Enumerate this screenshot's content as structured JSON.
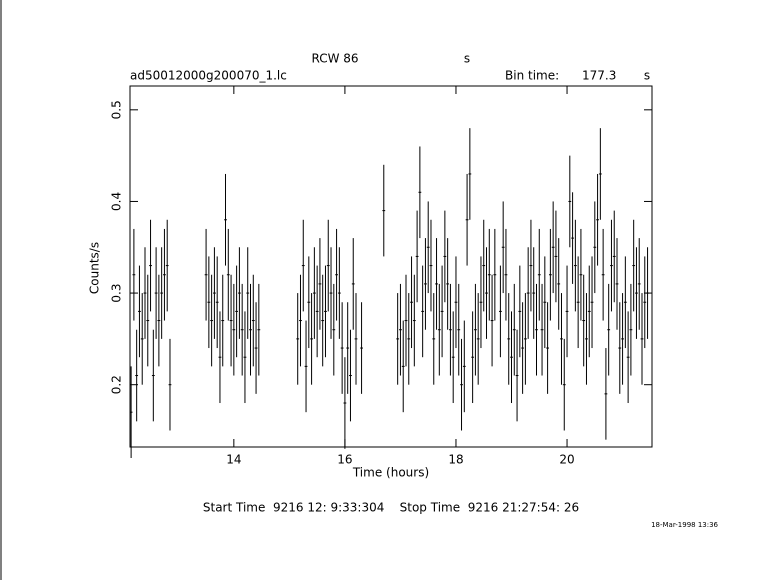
{
  "chart_data": {
    "type": "errorbar",
    "title": "RCW 86",
    "title_unit": "s",
    "file": "ad50012000g200070_1.lc",
    "bin_label": "Bin time:",
    "bin_value": "177.3",
    "bin_unit": "s",
    "xlabel": "Time (hours)",
    "ylabel": "Counts/s",
    "footer": "Start Time  9216 12: 9:33:304    Stop Time  9216 21:27:54: 26",
    "date_stamp": "18-Mar-1998 13:36",
    "xlim": [
      12.13,
      21.53
    ],
    "ylim": [
      0.132,
      0.526
    ],
    "xticks": [
      14,
      16,
      18,
      20
    ],
    "yticks": [
      0.2,
      0.3,
      0.4,
      0.5
    ],
    "yerr": 0.05,
    "color": "#000000",
    "x": [
      12.15,
      12.2,
      12.25,
      12.3,
      12.35,
      12.4,
      12.45,
      12.5,
      12.55,
      12.6,
      12.65,
      12.7,
      12.75,
      12.8,
      12.85,
      13.5,
      13.55,
      13.6,
      13.65,
      13.7,
      13.75,
      13.8,
      13.85,
      13.9,
      13.95,
      14.0,
      14.05,
      14.1,
      14.15,
      14.2,
      14.25,
      14.3,
      14.35,
      14.4,
      14.45,
      15.15,
      15.2,
      15.25,
      15.3,
      15.35,
      15.4,
      15.45,
      15.5,
      15.55,
      15.6,
      15.65,
      15.7,
      15.75,
      15.8,
      15.85,
      15.9,
      15.95,
      16.0,
      16.05,
      16.1,
      16.15,
      16.2,
      16.3,
      16.7,
      16.95,
      17.0,
      17.05,
      17.1,
      17.15,
      17.2,
      17.25,
      17.3,
      17.35,
      17.4,
      17.45,
      17.5,
      17.55,
      17.6,
      17.65,
      17.7,
      17.75,
      17.8,
      17.85,
      17.9,
      17.95,
      18.0,
      18.05,
      18.1,
      18.15,
      18.2,
      18.25,
      18.3,
      18.35,
      18.4,
      18.45,
      18.5,
      18.55,
      18.6,
      18.65,
      18.7,
      18.8,
      18.85,
      18.9,
      18.95,
      19.0,
      19.05,
      19.1,
      19.15,
      19.2,
      19.25,
      19.3,
      19.35,
      19.4,
      19.45,
      19.5,
      19.55,
      19.6,
      19.65,
      19.7,
      19.75,
      19.8,
      19.85,
      19.9,
      19.95,
      20.0,
      20.05,
      20.1,
      20.15,
      20.2,
      20.25,
      20.3,
      20.35,
      20.4,
      20.45,
      20.5,
      20.55,
      20.6,
      20.65,
      20.7,
      20.75,
      20.8,
      20.85,
      20.9,
      20.95,
      21.0,
      21.05,
      21.1,
      21.15,
      21.2,
      21.25,
      21.3,
      21.35,
      21.4,
      21.45
    ],
    "y": [
      0.17,
      0.32,
      0.21,
      0.28,
      0.25,
      0.3,
      0.27,
      0.33,
      0.21,
      0.3,
      0.27,
      0.3,
      0.32,
      0.33,
      0.2,
      0.32,
      0.29,
      0.27,
      0.3,
      0.29,
      0.23,
      0.27,
      0.38,
      0.32,
      0.27,
      0.26,
      0.28,
      0.3,
      0.26,
      0.23,
      0.3,
      0.26,
      0.27,
      0.24,
      0.26,
      0.25,
      0.27,
      0.33,
      0.22,
      0.29,
      0.25,
      0.3,
      0.28,
      0.31,
      0.27,
      0.28,
      0.33,
      0.3,
      0.26,
      0.32,
      0.3,
      0.24,
      0.18,
      0.24,
      0.21,
      0.31,
      0.25,
      0.24,
      0.39,
      0.25,
      0.26,
      0.22,
      0.27,
      0.25,
      0.29,
      0.27,
      0.34,
      0.41,
      0.28,
      0.31,
      0.35,
      0.33,
      0.25,
      0.31,
      0.26,
      0.28,
      0.34,
      0.31,
      0.26,
      0.23,
      0.29,
      0.26,
      0.2,
      0.22,
      0.38,
      0.43,
      0.23,
      0.26,
      0.25,
      0.29,
      0.33,
      0.3,
      0.32,
      0.27,
      0.32,
      0.28,
      0.35,
      0.32,
      0.25,
      0.23,
      0.26,
      0.21,
      0.28,
      0.24,
      0.25,
      0.3,
      0.33,
      0.3,
      0.26,
      0.32,
      0.26,
      0.29,
      0.24,
      0.32,
      0.35,
      0.34,
      0.31,
      0.25,
      0.2,
      0.28,
      0.4,
      0.36,
      0.33,
      0.29,
      0.32,
      0.27,
      0.25,
      0.28,
      0.29,
      0.35,
      0.38,
      0.43,
      0.32,
      0.19,
      0.26,
      0.33,
      0.34,
      0.31,
      0.24,
      0.25,
      0.29,
      0.23,
      0.26,
      0.33,
      0.3,
      0.31,
      0.25,
      0.29,
      0.3
    ]
  }
}
